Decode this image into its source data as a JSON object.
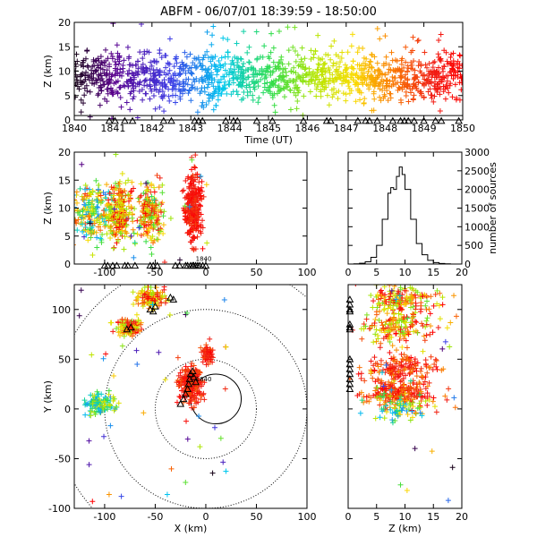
{
  "title": "ABFM - 06/07/01 18:39:59 - 18:50:00",
  "chart_data": [
    {
      "id": "time-height",
      "type": "scatter",
      "xlabel": "Time (UT)",
      "ylabel": "Z (km)",
      "xlim": [
        1840,
        1850
      ],
      "ylim": [
        0,
        20
      ],
      "xticks": [
        "1840",
        "1841",
        "1842",
        "1843",
        "1844",
        "1845",
        "1846",
        "1847",
        "1848",
        "1849",
        "1850"
      ],
      "yticks": [
        "0",
        "5",
        "10",
        "15",
        "20"
      ],
      "color_encoding": "time (purple to red)",
      "marker": "+"
    },
    {
      "id": "xz-projection",
      "type": "scatter",
      "xlabel": "",
      "ylabel": "Z (km)",
      "xlim": [
        -130,
        100
      ],
      "ylim": [
        0,
        20
      ],
      "xticks": [
        "-100",
        "-50",
        "0",
        "50",
        "100"
      ],
      "yticks": [
        "0",
        "5",
        "10",
        "15",
        "20"
      ],
      "annotation": "1840",
      "marker": "+"
    },
    {
      "id": "height-histogram",
      "type": "line",
      "xlabel": "",
      "ylabel": "number of sources",
      "xlim": [
        0,
        20
      ],
      "ylim": [
        0,
        3000
      ],
      "xticks": [
        "0",
        "5",
        "10",
        "15",
        "20"
      ],
      "yticks": [
        "0",
        "500",
        "1000",
        "1500",
        "2000",
        "2500",
        "3000"
      ],
      "x": [
        0,
        1,
        2,
        3,
        4,
        5,
        6,
        7,
        7.5,
        8,
        8.5,
        9,
        9.5,
        10,
        11,
        12,
        13,
        14,
        15,
        16,
        17,
        18,
        19,
        20
      ],
      "values": [
        0,
        5,
        20,
        60,
        180,
        500,
        1200,
        1900,
        2050,
        2000,
        2350,
        2600,
        2400,
        2000,
        1200,
        550,
        250,
        100,
        40,
        15,
        5,
        0,
        0,
        0
      ]
    },
    {
      "id": "plan-view",
      "type": "scatter",
      "xlabel": "X (km)",
      "ylabel": "Y (km)",
      "xlim": [
        -130,
        100
      ],
      "ylim": [
        -100,
        125
      ],
      "xticks": [
        "-100",
        "-50",
        "0",
        "50",
        "100"
      ],
      "yticks": [
        "-100",
        "-50",
        "0",
        "50",
        "100"
      ],
      "range_rings_km": [
        25,
        50,
        100,
        150
      ],
      "annotation": "1840",
      "marker": "+"
    },
    {
      "id": "zy-projection",
      "type": "scatter",
      "xlabel": "Z (km)",
      "ylabel": "",
      "xlim": [
        0,
        20
      ],
      "ylim": [
        -100,
        125
      ],
      "xticks": [
        "0",
        "5",
        "10",
        "15",
        "20"
      ],
      "yticks": [
        "-100",
        "-50",
        "0",
        "50",
        "100"
      ],
      "marker": "+"
    }
  ]
}
